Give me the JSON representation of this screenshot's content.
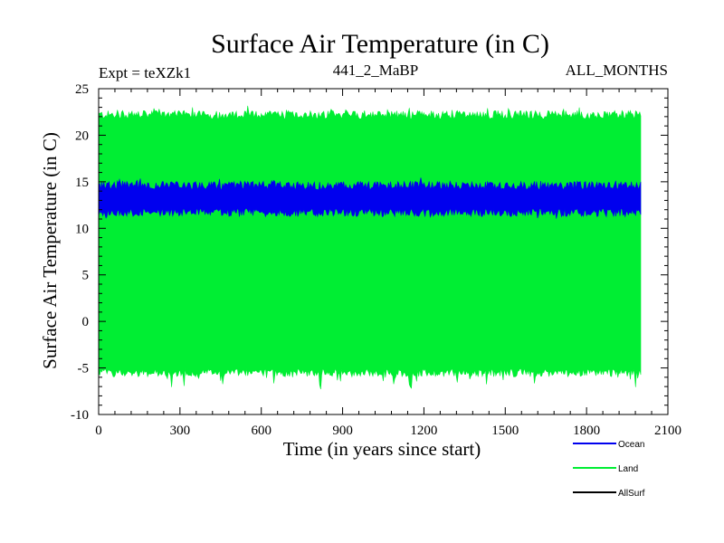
{
  "chart_data": {
    "type": "area",
    "title": "Surface Air Temperature (in C)",
    "subtitle_left": "Expt = teXZk1",
    "subtitle_center": "441_2_MaBP",
    "subtitle_right": "ALL_MONTHS",
    "xlabel": "Time (in years since start)",
    "ylabel": "Surface Air Temperature (in C)",
    "xlim": [
      0,
      2100
    ],
    "ylim": [
      -10,
      25
    ],
    "x_ticks": [
      0,
      300,
      600,
      900,
      1200,
      1500,
      1800,
      2100
    ],
    "y_ticks": [
      -10,
      -5,
      0,
      5,
      10,
      15,
      20,
      25
    ],
    "x_range_data": [
      0,
      2000
    ],
    "series": [
      {
        "name": "Land",
        "color": "#00ee33",
        "lower": -5.5,
        "upper": 22.2,
        "lower_extreme": -7.0,
        "upper_extreme": 22.8
      },
      {
        "name": "Ocean",
        "color": "#0000ee",
        "lower": 11.7,
        "upper": 14.6,
        "lower_extreme": 11.3,
        "upper_extreme": 15.0
      },
      {
        "name": "AllSurf",
        "color": "#000000"
      }
    ],
    "legend": [
      {
        "name": "Ocean",
        "color": "#0000ee"
      },
      {
        "name": "Land",
        "color": "#00ee33"
      },
      {
        "name": "AllSurf",
        "color": "#000000"
      }
    ]
  }
}
